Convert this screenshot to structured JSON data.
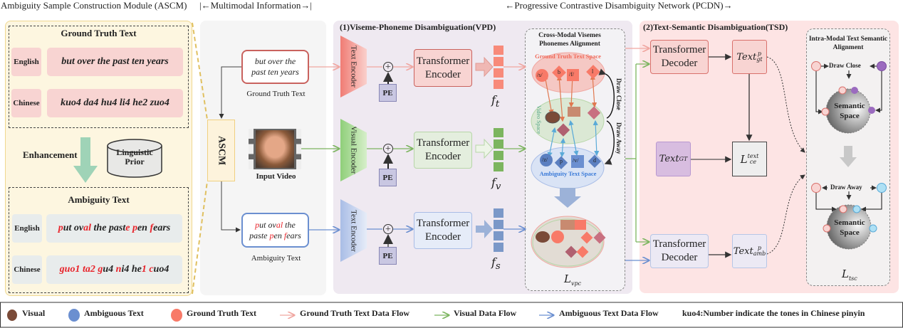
{
  "header": {
    "ascm": "Ambiguity Sample Construction Module (ASCM)",
    "multimodal": "|←Multimodal Information→|",
    "pcdn": "←Progressive Contrastive Disambiguity Network (PCDN)→"
  },
  "ascm_panel": {
    "gt_title": "Ground Truth Text",
    "gt_rows": [
      {
        "lang": "English",
        "text": "but over the past ten years"
      },
      {
        "lang": "Chinese",
        "text": "kuo4 da4 hu4 li4 he2 zuo4"
      }
    ],
    "enhancement": "Enhancement",
    "prior": "Linguistic Prior",
    "amb_title": "Ambiguity Text",
    "amb_rows": [
      {
        "lang": "English",
        "segments": [
          [
            "p",
            "r"
          ],
          [
            "ut ov",
            ""
          ],
          [
            "al",
            "r"
          ],
          [
            " the past",
            ""
          ],
          [
            "e",
            "r"
          ],
          [
            " ",
            ""
          ],
          [
            "p",
            "r"
          ],
          [
            "en ",
            ""
          ],
          [
            "f",
            "r"
          ],
          [
            "ears",
            ""
          ]
        ]
      },
      {
        "lang": "Chinese",
        "segments": [
          [
            "guo",
            "r"
          ],
          [
            "1",
            "r"
          ],
          [
            " ",
            ""
          ],
          [
            "t",
            "r"
          ],
          [
            "a",
            "r"
          ],
          [
            "2",
            "r"
          ],
          [
            " ",
            ""
          ],
          [
            "g",
            "r"
          ],
          [
            "u4 ",
            ""
          ],
          [
            "n",
            "r"
          ],
          [
            "i4 he",
            ""
          ],
          [
            "1",
            "r"
          ],
          [
            " ",
            ""
          ],
          [
            "c",
            "r"
          ],
          [
            "uo4",
            ""
          ]
        ]
      }
    ]
  },
  "multimodal": {
    "ascm_label": "ASCM",
    "gt_box": "but over the past ten years",
    "gt_label": "Ground Truth Text",
    "video_label": "Input Video",
    "amb_box_segments": [
      [
        "p",
        "r"
      ],
      [
        "ut ov",
        ""
      ],
      [
        "al",
        "r"
      ],
      [
        " the paste",
        ""
      ],
      [
        " ",
        ""
      ],
      [
        "p",
        "r"
      ],
      [
        "en ",
        ""
      ],
      [
        "f",
        "r"
      ],
      [
        "ears",
        ""
      ]
    ],
    "amb_label": "Ambiguity Text"
  },
  "vpd": {
    "title": "(1)Viseme-Phoneme Disambiguation(VPD)",
    "rows": [
      {
        "encoder": "Text Encoder",
        "pe": "PE",
        "transformer": "Transformer Encoder",
        "feature": "f",
        "sub": "t",
        "color": "#f88a7a"
      },
      {
        "encoder": "Visual Encoder",
        "pe": "PE",
        "transformer": "Transformer Encoder",
        "feature": "f",
        "sub": "v",
        "color": "#7cb55f"
      },
      {
        "encoder": "Text Encoder",
        "pe": "PE",
        "transformer": "Transformer Encoder",
        "feature": "f",
        "sub": "s",
        "color": "#7b98c8"
      }
    ],
    "alignment": {
      "title": "Cross-Modal Visemes Phonemes Alignment",
      "gt_space": "Ground Truth Text Space",
      "video_space": "Video Space",
      "amb_space": "Ambiguity Text Space",
      "gt_tokens": [
        "/s/",
        "b",
        "/f/",
        "l"
      ],
      "amb_tokens": [
        "/z/",
        "p",
        "/v/",
        "d"
      ],
      "draw_close": "Draw Close",
      "draw_away": "Draw Away",
      "loss": "L",
      "loss_sub": "vpc"
    }
  },
  "tsd": {
    "title": "(2)Text-Semantic Disambiguation(TSD)",
    "decoder_top": "Transformer Decoder",
    "decoder_bottom": "Transformer Decoder",
    "text_gt_p": "Text",
    "text_gt_p_sup": "p",
    "text_gt_p_sub": "gt",
    "text_gt": "Text",
    "text_gt_sub": "GT",
    "loss_ce": "L",
    "loss_ce_sup": "text",
    "loss_ce_sub": "ce",
    "text_amb_p": "Text",
    "text_amb_p_sup": "p",
    "text_amb_p_sub": "amb",
    "alignment": {
      "title": "Intra-Modal Text Semantic Alignment",
      "draw_close": "Draw Close",
      "draw_away": "Draw Away",
      "space": "Semantic Space",
      "loss": "L",
      "loss_sub": "tsc"
    }
  },
  "legend": {
    "visual": "Visual",
    "ambiguous": "Ambiguous Text",
    "ground_truth": "Ground Truth Text",
    "gt_flow": "Ground Truth Text Data Flow",
    "visual_flow": "Visual Data Flow",
    "amb_flow": "Ambiguous Text Data Flow",
    "note": "kuo4:Number indicate the tones in Chinese pinyin"
  },
  "colors": {
    "gt": "#f88a7a",
    "visual": "#7cb55f",
    "amb": "#7b98c8",
    "highlight": "#e8232a"
  }
}
